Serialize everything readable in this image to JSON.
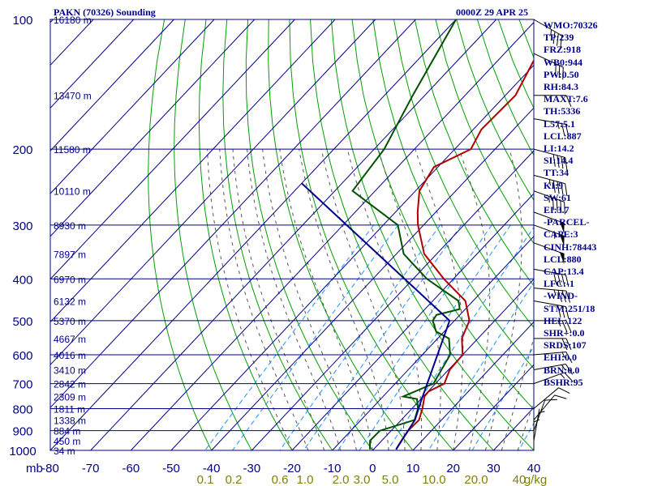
{
  "header": {
    "station": "PAKN (70326) Sounding",
    "datetime": "0000Z 29 APR 25"
  },
  "indices": [
    "WMO:70326",
    "TP:239",
    "FRZ:918",
    "WB0:944",
    "PW:0.50",
    "RH:84.3",
    "MAXT:7.6",
    "TH:5336",
    "L57:5.1",
    "LCL:887",
    "LI:14.2",
    "SI:14.4",
    "TT:34",
    "KI:9",
    "SW:61",
    "EI:3.7",
    "-PARCEL-",
    "CAPE:3",
    "CINH:78443",
    "LCL:880",
    "CAP:13.4",
    "LFC:-1",
    "-WIND-",
    "STM:251/18",
    "HEL:122",
    "SHR+:0.0",
    "SRDS:107",
    "EHI:0.0",
    "BRN:0.0",
    "BSHR:95"
  ],
  "chart_data": {
    "type": "line",
    "subtype": "skew-T log-P sounding",
    "x_axis_label": "mb",
    "x_ticks": [
      -80,
      -70,
      -60,
      -50,
      -40,
      -30,
      -20,
      -10,
      0,
      10,
      20,
      30,
      40
    ],
    "x_range": [
      -80,
      40
    ],
    "y_ticks": [
      100,
      200,
      300,
      400,
      500,
      600,
      700,
      800,
      900,
      1000
    ],
    "y_range": [
      100,
      1000
    ],
    "y_scale": "log",
    "height_labels": [
      {
        "p": 100,
        "label": "16180 m"
      },
      {
        "p": 150,
        "label": "13470 m"
      },
      {
        "p": 200,
        "label": "11580 m"
      },
      {
        "p": 250,
        "label": "10110 m"
      },
      {
        "p": 300,
        "label": "8930 m"
      },
      {
        "p": 350,
        "label": "7897 m"
      },
      {
        "p": 400,
        "label": "6970 m"
      },
      {
        "p": 450,
        "label": "6132 m"
      },
      {
        "p": 500,
        "label": "5370 m"
      },
      {
        "p": 550,
        "label": "4667 m"
      },
      {
        "p": 600,
        "label": "4016 m"
      },
      {
        "p": 650,
        "label": "3410 m"
      },
      {
        "p": 700,
        "label": "2842 m"
      },
      {
        "p": 750,
        "label": "2309 m"
      },
      {
        "p": 800,
        "label": "1811 m"
      },
      {
        "p": 850,
        "label": "1338 m"
      },
      {
        "p": 900,
        "label": "884 m"
      },
      {
        "p": 950,
        "label": "450 m"
      },
      {
        "p": 1000,
        "label": "34 m"
      }
    ],
    "mixing_ratio_labels": [
      "0.1",
      "0.2",
      "0.6",
      "1.0",
      "2.0",
      "3.0",
      "5.0",
      "10.0",
      "20.0",
      "40",
      "g/kg"
    ],
    "series": [
      {
        "kind": "temperature",
        "color": "#b00000",
        "points": [
          [
            100,
            -55.3
          ],
          [
            120,
            -51.8
          ],
          [
            150,
            -47.5
          ],
          [
            180,
            -48.0
          ],
          [
            200,
            -46.0
          ],
          [
            220,
            -51.0
          ],
          [
            250,
            -49.0
          ],
          [
            280,
            -44.5
          ],
          [
            300,
            -41.4
          ],
          [
            350,
            -33.1
          ],
          [
            400,
            -22.4
          ],
          [
            450,
            -11.9
          ],
          [
            500,
            -6.3
          ],
          [
            550,
            -4.0
          ],
          [
            600,
            0.0
          ],
          [
            650,
            0.3
          ],
          [
            700,
            2.2
          ],
          [
            730,
            0.1
          ],
          [
            750,
            0.3
          ],
          [
            800,
            2.6
          ],
          [
            850,
            4.4
          ],
          [
            900,
            4.2
          ],
          [
            950,
            4.9
          ],
          [
            995,
            5.6
          ]
        ]
      },
      {
        "kind": "dewpoint",
        "color": "#005000",
        "points": [
          [
            100,
            -80.0
          ],
          [
            150,
            -73.0
          ],
          [
            200,
            -67.5
          ],
          [
            250,
            -65.6
          ],
          [
            300,
            -46.4
          ],
          [
            350,
            -38.2
          ],
          [
            400,
            -26.6
          ],
          [
            450,
            -13.6
          ],
          [
            470,
            -11.4
          ],
          [
            485,
            -15.8
          ],
          [
            500,
            -15.4
          ],
          [
            530,
            -12.0
          ],
          [
            550,
            -7.2
          ],
          [
            600,
            -3.1
          ],
          [
            700,
            -0.5
          ],
          [
            750,
            -5.0
          ],
          [
            760,
            -1.0
          ],
          [
            800,
            1.5
          ],
          [
            850,
            3.3
          ],
          [
            900,
            -2.8
          ],
          [
            950,
            -2.9
          ],
          [
            995,
            -0.9
          ]
        ]
      },
      {
        "kind": "parcel",
        "color": "#00008b",
        "points": [
          [
            240,
            -80.0
          ],
          [
            500,
            -11.2
          ],
          [
            780,
            0.9
          ],
          [
            850,
            3.4
          ],
          [
            995,
            5.6
          ]
        ]
      }
    ],
    "wind_barbs": [
      {
        "p": 100,
        "dir": 300,
        "speed": 35
      },
      {
        "p": 120,
        "dir": 295,
        "speed": 30
      },
      {
        "p": 150,
        "dir": 270,
        "speed": 10
      },
      {
        "p": 170,
        "dir": 280,
        "speed": 25
      },
      {
        "p": 200,
        "dir": 285,
        "speed": 40
      },
      {
        "p": 230,
        "dir": 285,
        "speed": 45
      },
      {
        "p": 250,
        "dir": 290,
        "speed": 45
      },
      {
        "p": 280,
        "dir": 290,
        "speed": 50
      },
      {
        "p": 300,
        "dir": 290,
        "speed": 55
      },
      {
        "p": 330,
        "dir": 290,
        "speed": 50
      },
      {
        "p": 380,
        "dir": 280,
        "speed": 40
      },
      {
        "p": 420,
        "dir": 275,
        "speed": 35
      },
      {
        "p": 450,
        "dir": 280,
        "speed": 30
      },
      {
        "p": 500,
        "dir": 270,
        "speed": 25
      },
      {
        "p": 550,
        "dir": 270,
        "speed": 20
      },
      {
        "p": 600,
        "dir": 265,
        "speed": 15
      },
      {
        "p": 650,
        "dir": 260,
        "speed": 15
      },
      {
        "p": 700,
        "dir": 250,
        "speed": 15
      },
      {
        "p": 800,
        "dir": 230,
        "speed": 10
      },
      {
        "p": 850,
        "dir": 220,
        "speed": 10
      },
      {
        "p": 900,
        "dir": 200,
        "speed": 10
      },
      {
        "p": 950,
        "dir": 190,
        "speed": 5
      },
      {
        "p": 1000,
        "dir": 180,
        "speed": 5
      }
    ],
    "grid": true,
    "colors": {
      "grid": "#00008b",
      "dry_adiabats": "#00a000",
      "moist_adiabats": "#555555",
      "mixing_ratio": "#1e90ff",
      "axis_text": "#00008b",
      "mixing_text": "#808000",
      "wind": "#000000"
    }
  }
}
